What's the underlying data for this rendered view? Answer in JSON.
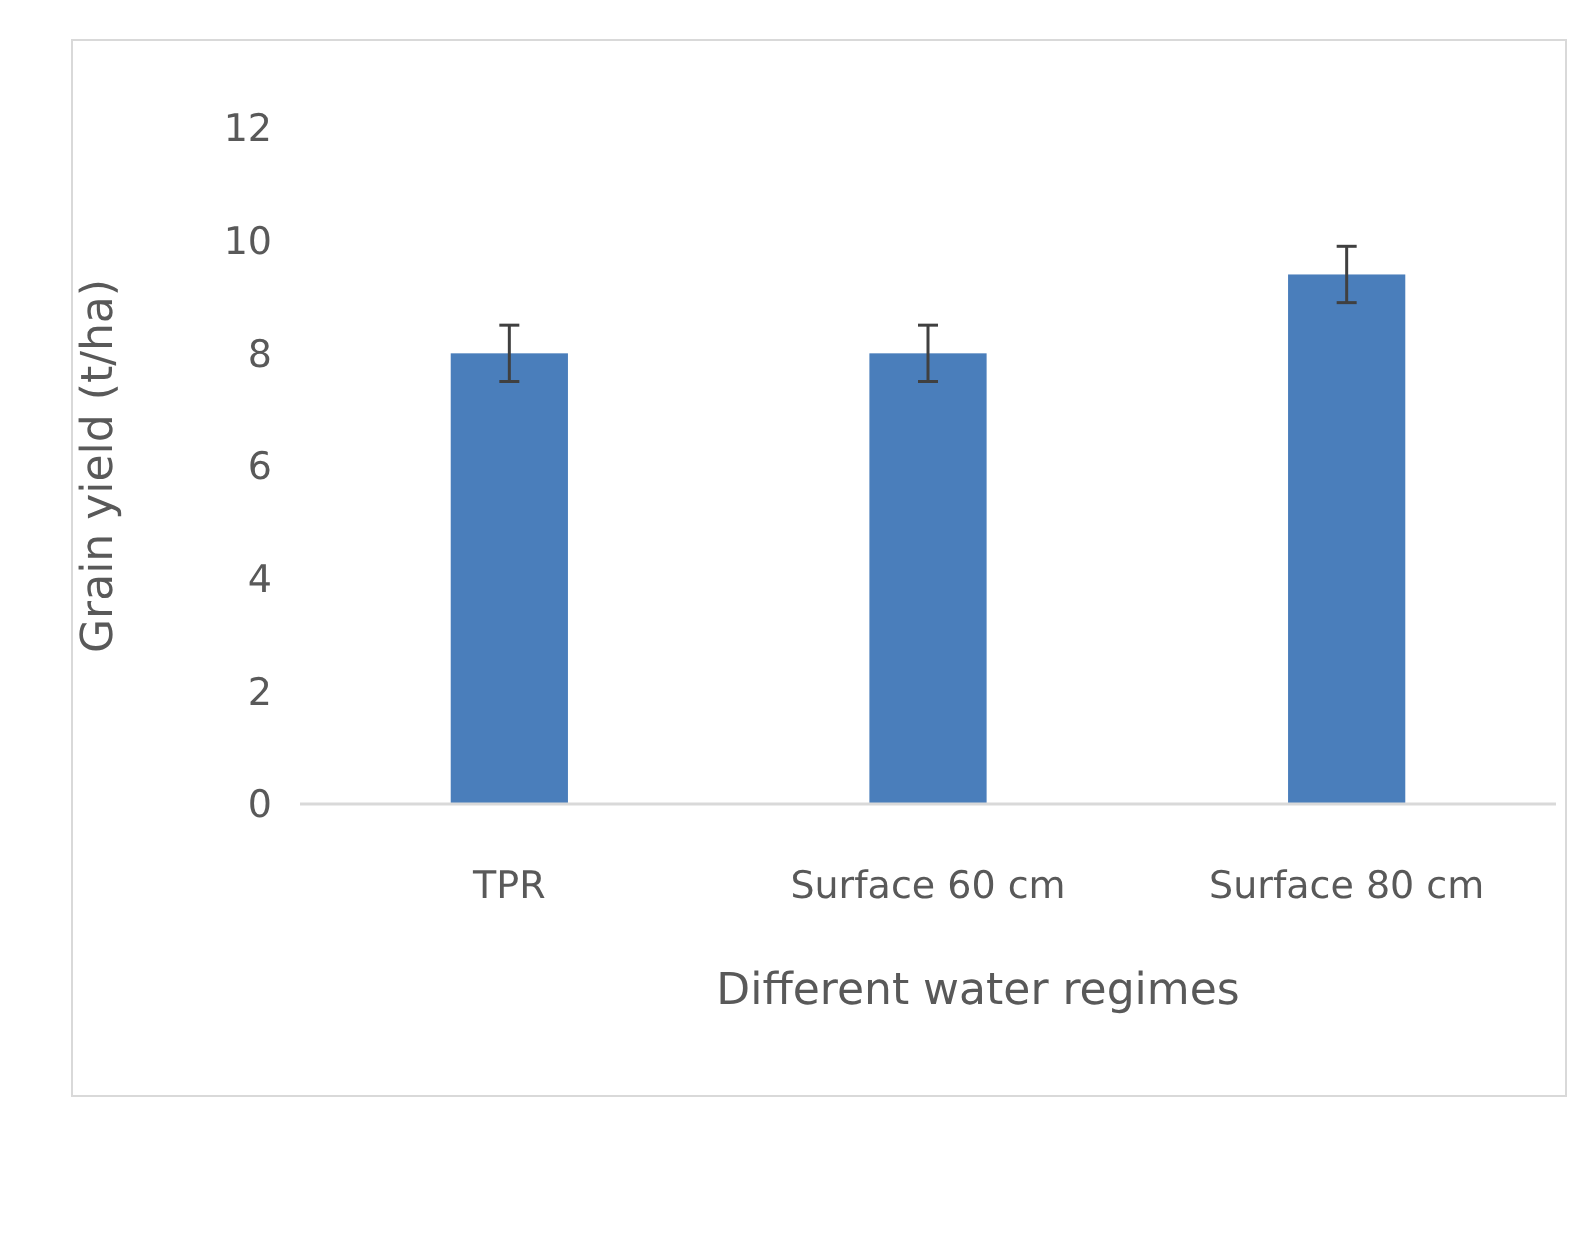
{
  "chart_data": {
    "type": "bar",
    "xlabel": "Different water regimes",
    "ylabel": "Grain yield (t/ha)",
    "categories": [
      "TPR",
      "Surface 60 cm",
      "Surface 80 cm"
    ],
    "values": [
      8.0,
      8.0,
      9.4
    ],
    "errors": [
      0.5,
      0.5,
      0.5
    ],
    "color": "#4a7ebb",
    "ylim": [
      0,
      12
    ],
    "yticks": [
      0,
      2,
      4,
      6,
      8,
      10,
      12
    ],
    "grid": false
  }
}
